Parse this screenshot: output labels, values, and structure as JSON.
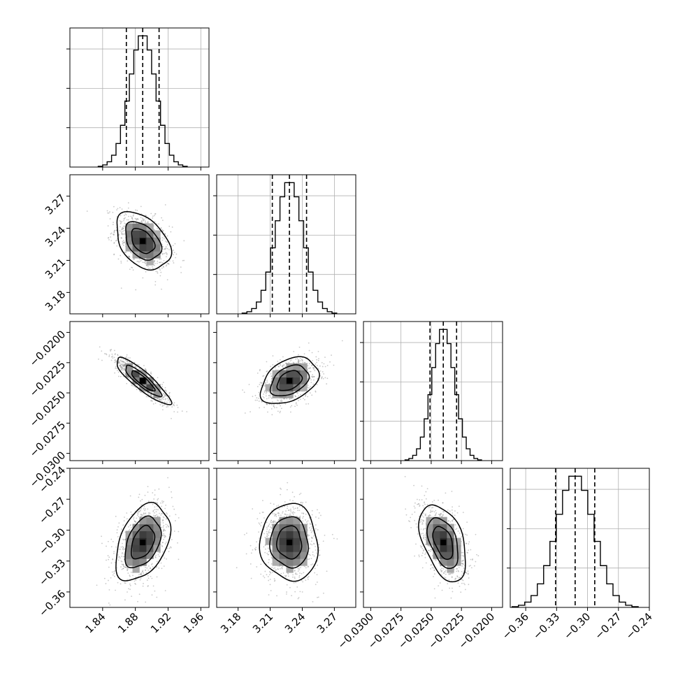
{
  "chart_data": {
    "type": "corner",
    "parameters": [
      {
        "mean": 1.889,
        "sigma": 0.016,
        "quantiles": [
          1.869,
          1.889,
          1.909
        ],
        "range": [
          1.8,
          1.97
        ],
        "ticks": [
          1.84,
          1.88,
          1.92,
          1.96
        ],
        "tick_labels": [
          "1.84",
          "1.88",
          "1.92",
          "1.96"
        ]
      },
      {
        "mean": 3.228,
        "sigma": 0.013,
        "quantiles": [
          3.212,
          3.228,
          3.244
        ],
        "range": [
          3.16,
          3.29
        ],
        "ticks": [
          3.18,
          3.21,
          3.24,
          3.27
        ],
        "tick_labels": [
          "3.18",
          "3.21",
          "3.24",
          "3.27"
        ]
      },
      {
        "mean": -0.024,
        "sigma": 0.00093,
        "quantiles": [
          -0.0251,
          -0.024,
          -0.0229
        ],
        "range": [
          -0.0306,
          -0.0191
        ],
        "ticks": [
          -0.03,
          -0.0275,
          -0.025,
          -0.0225,
          -0.02
        ],
        "tick_labels": [
          "−0.0300",
          "−0.0275",
          "−0.0250",
          "−0.0225",
          "−0.0200"
        ]
      },
      {
        "mean": -0.312,
        "sigma": 0.018,
        "quantiles": [
          -0.331,
          -0.312,
          -0.293
        ],
        "range": [
          -0.375,
          -0.24
        ],
        "ticks": [
          -0.36,
          -0.33,
          -0.3,
          -0.27,
          -0.24
        ],
        "tick_labels": [
          "−0.36",
          "−0.33",
          "−0.30",
          "−0.27",
          "−0.24"
        ]
      }
    ],
    "correlations": [
      {
        "pair": [
          1,
          0
        ],
        "rho": -0.4
      },
      {
        "pair": [
          2,
          0
        ],
        "rho": -0.88
      },
      {
        "pair": [
          2,
          1
        ],
        "rho": 0.38
      },
      {
        "pair": [
          3,
          0
        ],
        "rho": 0.4
      },
      {
        "pair": [
          3,
          1
        ],
        "rho": -0.05
      },
      {
        "pair": [
          3,
          2
        ],
        "rho": -0.45
      }
    ],
    "histogram_bins": 20,
    "contour_levels_sigma": [
      0.5,
      1.0,
      1.5
    ],
    "grid": true,
    "colors": {
      "line": "#000000",
      "grid": "#b0b0b0",
      "points": "#888888"
    }
  }
}
